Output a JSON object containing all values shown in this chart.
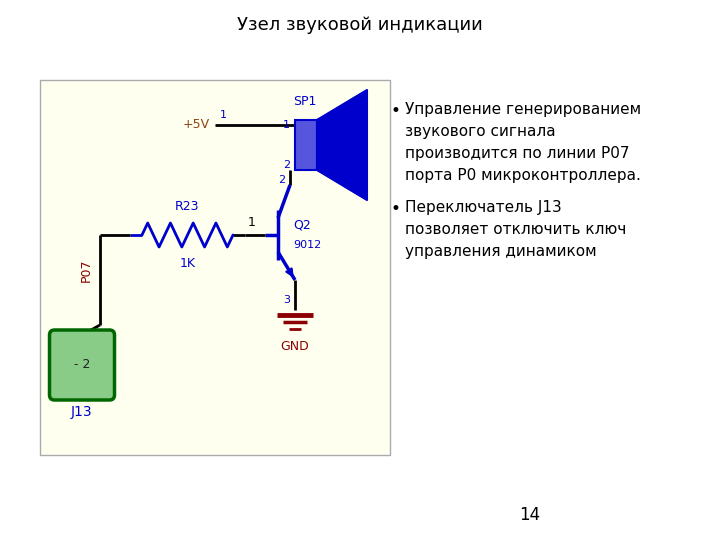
{
  "title": "Узел звуковой индикации",
  "page_number": "14",
  "circuit_bg": "#fffff0",
  "bullet_points": [
    "Управление генерированием\nзвукового сигнала\nпроизводится по линии P07\nпорта P0 микроконтроллера.",
    "Переключатель J13\nпозволяет отключить ключ\nуправления динамиком"
  ],
  "wire_color": "#000000",
  "blue": "#0000cc",
  "red_brown": "#8B4513",
  "dark_red": "#8B0000",
  "green_edge": "#006600",
  "green_fill": "#88cc88"
}
